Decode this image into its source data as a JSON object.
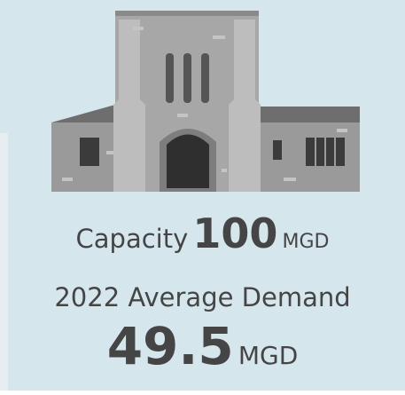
{
  "capacity": {
    "label": "Capacity",
    "value": 100,
    "unit": "MGD"
  },
  "demand": {
    "label": "2022 Average Demand",
    "value": 49.5,
    "unit": "MGD"
  }
}
